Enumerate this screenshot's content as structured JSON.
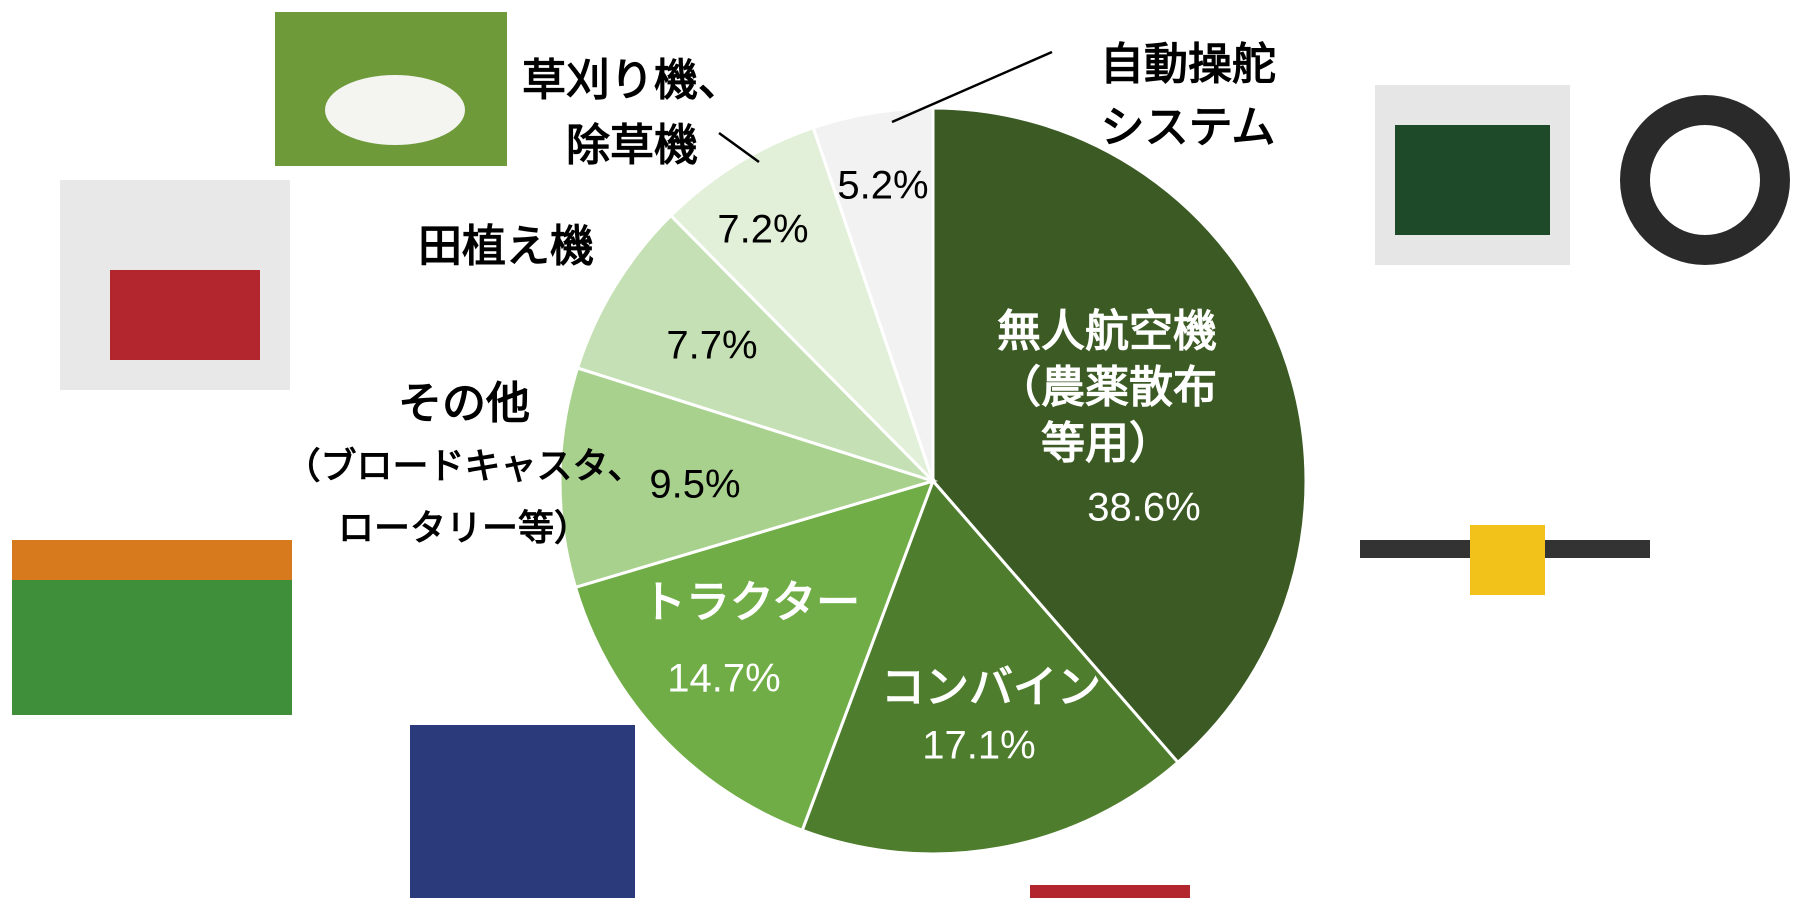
{
  "chart_data": {
    "type": "pie",
    "categories": [
      "無人航空機\n（農薬散布\n等用）",
      "コンバイン",
      "トラクター",
      "その他\n（ブロードキャスタ、\nロータリー等）",
      "田植え機",
      "草刈り機、\n除草機",
      "自動操舵\nシステム"
    ],
    "values": [
      38.6,
      17.1,
      14.7,
      9.5,
      7.7,
      7.2,
      5.2
    ],
    "value_labels": [
      "38.6%",
      "17.1%",
      "14.7%",
      "9.5%",
      "7.7%",
      "7.2%",
      "5.2%"
    ],
    "colors": [
      "#3b5a24",
      "#4e7d2d",
      "#70ad47",
      "#a9d18e",
      "#c5e0b4",
      "#e2f0d9",
      "#f2f2f2"
    ]
  }
}
